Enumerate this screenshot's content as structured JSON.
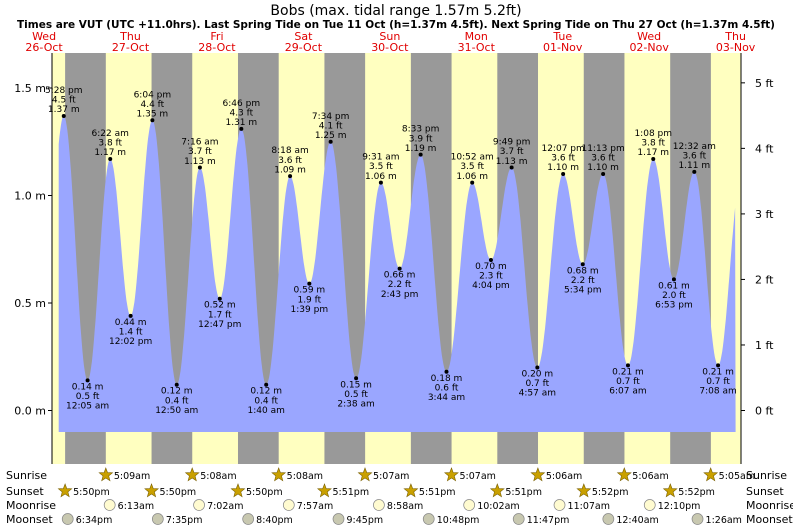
{
  "chart_data": {
    "type": "area",
    "title": "Bobs (max. tidal range 1.57m 5.2ft)",
    "subtitle": "Times are VUT (UTC +11.0hrs). Last Spring Tide on Tue 11 Oct (h=1.37m 4.5ft). Next Spring Tide on Thu 27 Oct (h=1.37m 4.5ft)",
    "ylim_m": [
      -0.2,
      1.6
    ],
    "left_ticks": [
      "1.5 m",
      "1.0 m",
      "0.5 m",
      "0.0 m"
    ],
    "left_tick_values": [
      1.5,
      1.0,
      0.5,
      0.0
    ],
    "right_ticks": [
      "5 ft",
      "4 ft",
      "3 ft",
      "2 ft",
      "1 ft",
      "0 ft"
    ],
    "right_tick_values_ft": [
      5,
      4,
      3,
      2,
      1,
      0
    ],
    "days": [
      {
        "name": "Wed",
        "date": "26-Oct"
      },
      {
        "name": "Thu",
        "date": "27-Oct"
      },
      {
        "name": "Fri",
        "date": "28-Oct"
      },
      {
        "name": "Sat",
        "date": "29-Oct"
      },
      {
        "name": "Sun",
        "date": "30-Oct"
      },
      {
        "name": "Mon",
        "date": "31-Oct"
      },
      {
        "name": "Tue",
        "date": "01-Nov"
      },
      {
        "name": "Wed",
        "date": "02-Nov"
      },
      {
        "name": "Thu",
        "date": "03-Nov"
      }
    ],
    "tides": [
      {
        "t": 17.467,
        "h": 1.37,
        "time": "5:28 pm",
        "ft": "4.5 ft",
        "m": "1.37 m",
        "type": "high"
      },
      {
        "t": 24.083,
        "h": 0.14,
        "time": "12:05 am",
        "ft": "0.5 ft",
        "m": "0.14 m",
        "type": "low"
      },
      {
        "t": 30.367,
        "h": 1.17,
        "time": "6:22 am",
        "ft": "3.8 ft",
        "m": "1.17 m",
        "type": "high"
      },
      {
        "t": 36.033,
        "h": 0.44,
        "time": "12:02 pm",
        "ft": "1.4 ft",
        "m": "0.44 m",
        "type": "low"
      },
      {
        "t": 42.067,
        "h": 1.35,
        "time": "6:04 pm",
        "ft": "4.4 ft",
        "m": "1.35 m",
        "type": "high"
      },
      {
        "t": 48.833,
        "h": 0.12,
        "time": "12:50 am",
        "ft": "0.4 ft",
        "m": "0.12 m",
        "type": "low"
      },
      {
        "t": 55.267,
        "h": 1.13,
        "time": "7:16 am",
        "ft": "3.7 ft",
        "m": "1.13 m",
        "type": "high"
      },
      {
        "t": 60.783,
        "h": 0.52,
        "time": "12:47 pm",
        "ft": "1.7 ft",
        "m": "0.52 m",
        "type": "low"
      },
      {
        "t": 66.767,
        "h": 1.31,
        "time": "6:46 pm",
        "ft": "4.3 ft",
        "m": "1.31 m",
        "type": "high"
      },
      {
        "t": 73.667,
        "h": 0.12,
        "time": "1:40 am",
        "ft": "0.4 ft",
        "m": "0.12 m",
        "type": "low"
      },
      {
        "t": 80.3,
        "h": 1.09,
        "time": "8:18 am",
        "ft": "3.6 ft",
        "m": "1.09 m",
        "type": "high"
      },
      {
        "t": 85.65,
        "h": 0.59,
        "time": "1:39 pm",
        "ft": "1.9 ft",
        "m": "0.59 m",
        "type": "low"
      },
      {
        "t": 91.567,
        "h": 1.25,
        "time": "7:34 pm",
        "ft": "4.1 ft",
        "m": "1.25 m",
        "type": "high"
      },
      {
        "t": 98.633,
        "h": 0.15,
        "time": "2:38 am",
        "ft": "0.5 ft",
        "m": "0.15 m",
        "type": "low"
      },
      {
        "t": 105.517,
        "h": 1.06,
        "time": "9:31 am",
        "ft": "3.5 ft",
        "m": "1.06 m",
        "type": "high"
      },
      {
        "t": 110.717,
        "h": 0.66,
        "time": "2:43 pm",
        "ft": "2.2 ft",
        "m": "0.66 m",
        "type": "low"
      },
      {
        "t": 116.55,
        "h": 1.19,
        "time": "8:33 pm",
        "ft": "3.9 ft",
        "m": "1.19 m",
        "type": "high"
      },
      {
        "t": 123.733,
        "h": 0.18,
        "time": "3:44 am",
        "ft": "0.6 ft",
        "m": "0.18 m",
        "type": "low"
      },
      {
        "t": 130.867,
        "h": 1.06,
        "time": "10:52 am",
        "ft": "3.5 ft",
        "m": "1.06 m",
        "type": "high"
      },
      {
        "t": 136.067,
        "h": 0.7,
        "time": "4:04 pm",
        "ft": "2.3 ft",
        "m": "0.70 m",
        "type": "low"
      },
      {
        "t": 141.817,
        "h": 1.13,
        "time": "9:49 pm",
        "ft": "3.7 ft",
        "m": "1.13 m",
        "type": "high"
      },
      {
        "t": 148.95,
        "h": 0.2,
        "time": "4:57 am",
        "ft": "0.7 ft",
        "m": "0.20 m",
        "type": "low"
      },
      {
        "t": 156.117,
        "h": 1.1,
        "time": "12:07 pm",
        "ft": "3.6 ft",
        "m": "1.10 m",
        "type": "high"
      },
      {
        "t": 161.567,
        "h": 0.68,
        "time": "5:34 pm",
        "ft": "2.2 ft",
        "m": "0.68 m",
        "type": "low"
      },
      {
        "t": 167.217,
        "h": 1.1,
        "time": "11:13 pm",
        "ft": "3.6 ft",
        "m": "1.10 m",
        "type": "high"
      },
      {
        "t": 174.117,
        "h": 0.21,
        "time": "6:07 am",
        "ft": "0.7 ft",
        "m": "0.21 m",
        "type": "low"
      },
      {
        "t": 181.133,
        "h": 1.17,
        "time": "1:08 pm",
        "ft": "3.8 ft",
        "m": "1.17 m",
        "type": "high"
      },
      {
        "t": 186.883,
        "h": 0.61,
        "time": "6:53 pm",
        "ft": "2.0 ft",
        "m": "0.61 m",
        "type": "low"
      },
      {
        "t": 192.533,
        "h": 1.11,
        "time": "12:32 am",
        "ft": "3.6 ft",
        "m": "1.11 m",
        "type": "high"
      },
      {
        "t": 199.133,
        "h": 0.21,
        "time": "7:08 am",
        "ft": "0.7 ft",
        "m": "0.21 m",
        "type": "low"
      }
    ],
    "series_start_t": 16.067,
    "series_end_t": 204.0,
    "sunrise": [
      "5:09am",
      "5:08am",
      "5:08am",
      "5:07am",
      "5:07am",
      "5:06am",
      "5:06am",
      "5:05am"
    ],
    "sunset": [
      "5:50pm",
      "5:50pm",
      "5:50pm",
      "5:51pm",
      "5:51pm",
      "5:51pm",
      "5:52pm",
      "5:52pm"
    ],
    "moonrise": [
      "6:13am",
      "7:02am",
      "7:57am",
      "8:58am",
      "10:02am",
      "11:07am",
      "12:10pm"
    ],
    "moonset": [
      "6:34pm",
      "7:35pm",
      "8:40pm",
      "9:45pm",
      "10:48pm",
      "11:47pm",
      "12:40am",
      "1:26am"
    ]
  },
  "rows": {
    "sunrise": "Sunrise",
    "sunset": "Sunset",
    "moonrise": "Moonrise",
    "moonset": "Moonset"
  },
  "colors": {
    "day": "#ffffc0",
    "night": "#999999",
    "water": "#9aa6ff",
    "dayLabel": "#e00000"
  }
}
